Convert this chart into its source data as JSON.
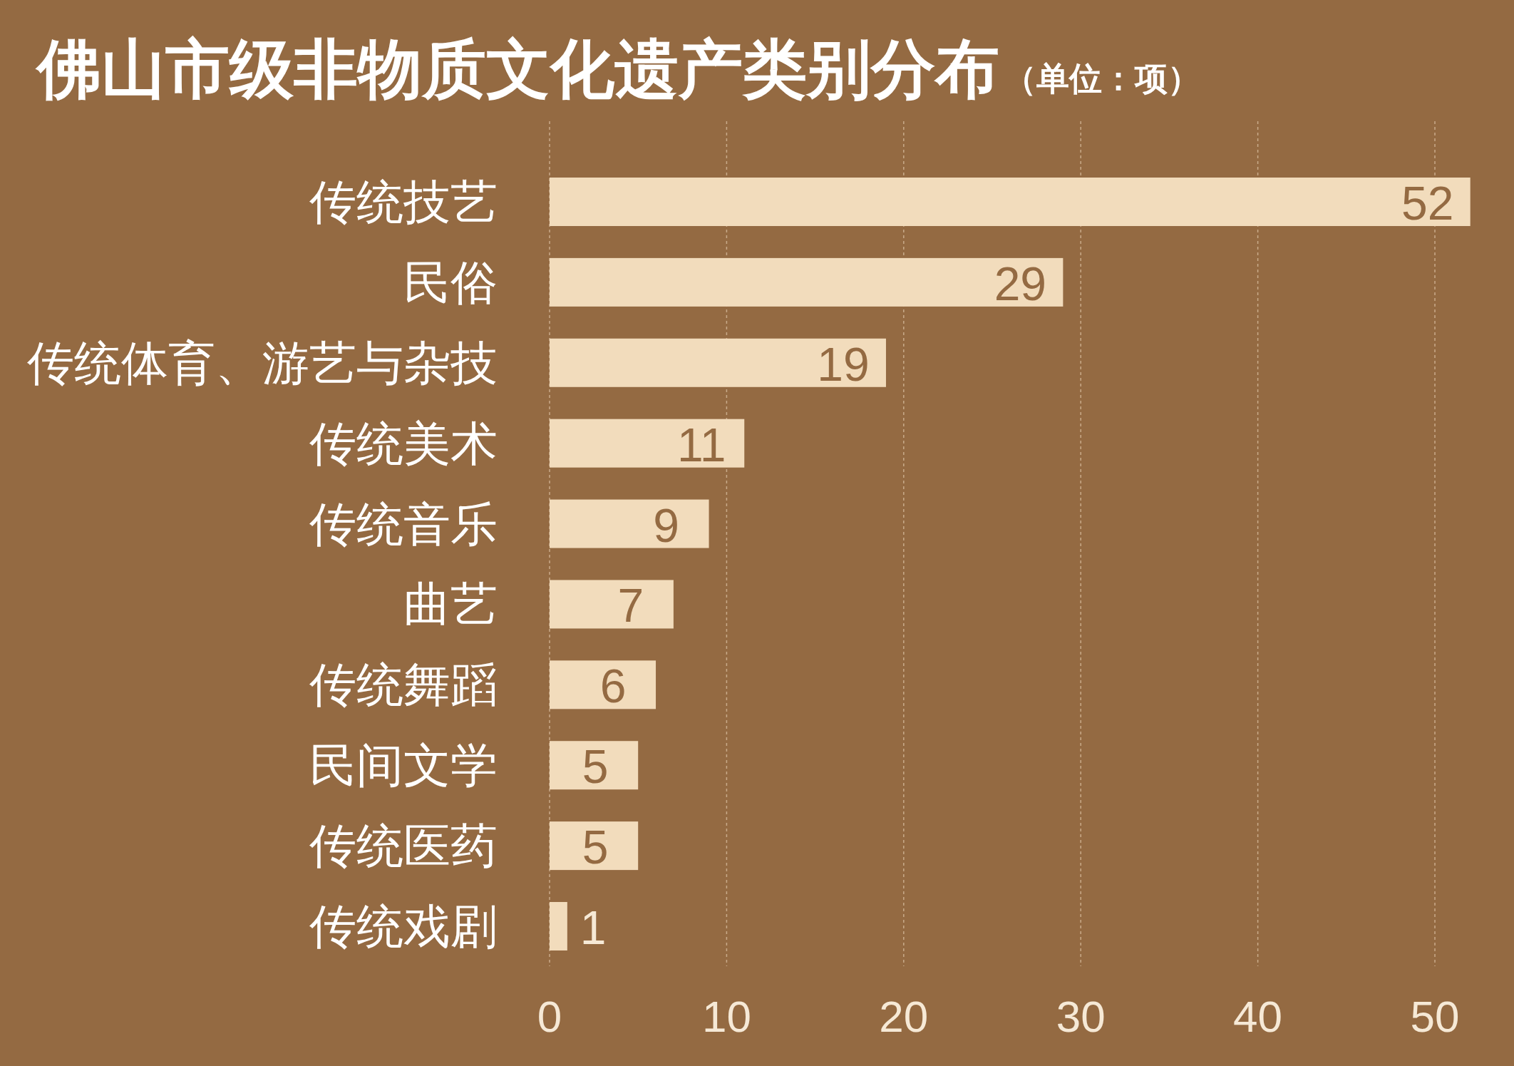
{
  "chart_data": {
    "type": "bar",
    "orientation": "horizontal",
    "title": "佛山市级非物质文化遗产类别分布",
    "subtitle": "（单位：项）",
    "categories": [
      "传统技艺",
      "民俗",
      "传统体育、游艺与杂技",
      "传统美术",
      "传统音乐",
      "曲艺",
      "传统舞蹈",
      "民间文学",
      "传统医药",
      "传统戏剧"
    ],
    "values": [
      52,
      29,
      19,
      11,
      9,
      7,
      6,
      5,
      5,
      1
    ],
    "color": "#f2dcbc",
    "xlim": [
      0,
      52
    ],
    "xticks": [
      0,
      10,
      20,
      30,
      40,
      50
    ],
    "grid": "x",
    "data_labels": true
  }
}
